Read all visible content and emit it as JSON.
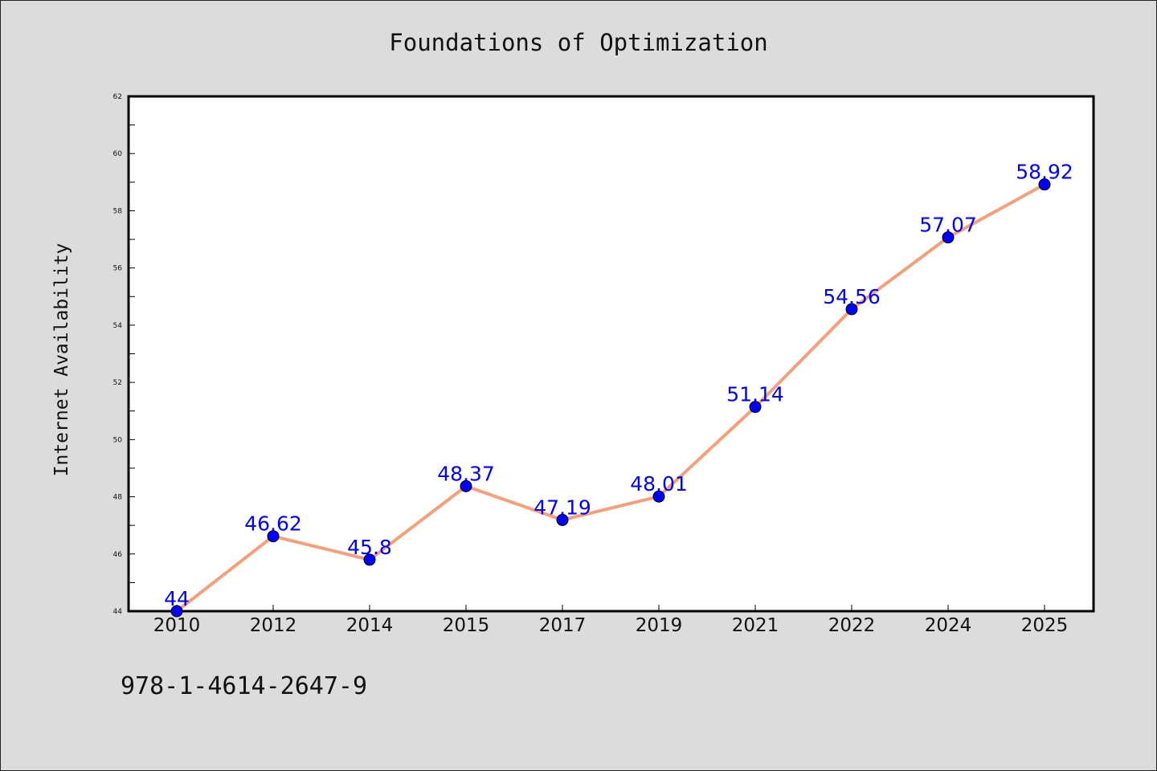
{
  "chart_data": {
    "type": "line",
    "title": "Foundations of Optimization",
    "xlabel": "",
    "ylabel": "Internet Availability",
    "categories": [
      "2010",
      "2012",
      "2014",
      "2015",
      "2017",
      "2019",
      "2021",
      "2022",
      "2024",
      "2025"
    ],
    "series": [
      {
        "values": [
          44,
          46.62,
          45.8,
          48.37,
          47.19,
          48.01,
          51.14,
          54.56,
          57.07,
          58.92
        ],
        "data_labels": [
          "44",
          "46.62",
          "45.8",
          "48.37",
          "47.19",
          "48.01",
          "51.14",
          "54.56",
          "57.07",
          "58.92"
        ],
        "line_color": "#f4a07a",
        "marker_color": "#0000ff"
      }
    ],
    "ylim": [
      44,
      62
    ],
    "yticks": [
      "44",
      "46",
      "48",
      "50",
      "52",
      "54",
      "56",
      "58",
      "60",
      "62"
    ],
    "grid": false,
    "legend": "none"
  },
  "footer": {
    "isbn": "978-1-4614-2647-9"
  },
  "colors": {
    "background": "#dcdcdc",
    "plot_background": "#ffffff",
    "label_color": "#0000ff"
  }
}
